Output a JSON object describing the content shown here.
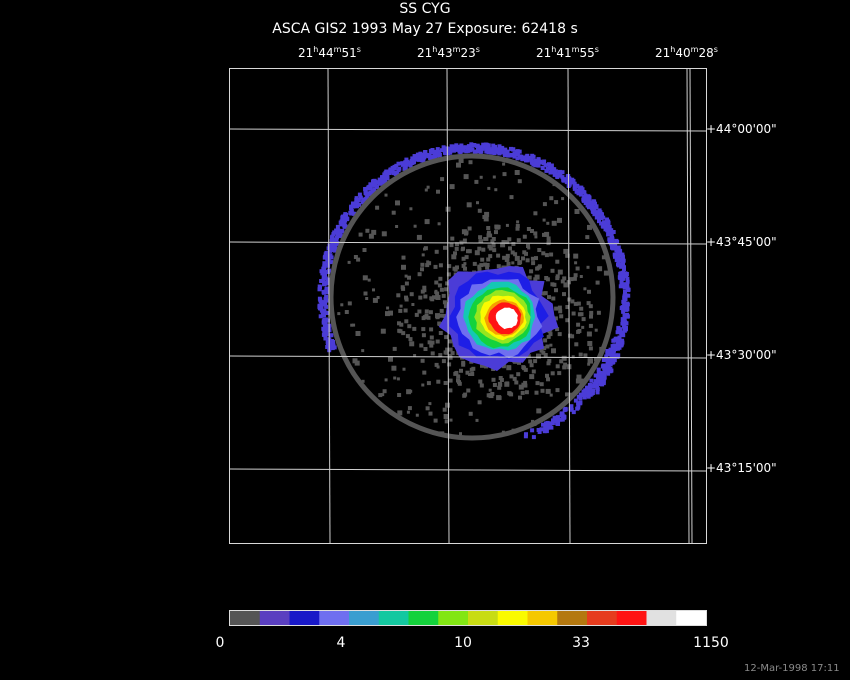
{
  "header": {
    "target": "SS CYG",
    "subtitle": "ASCA GIS2   1993 May 27    Exposure: 62418 s"
  },
  "ra_ticks": [
    {
      "h": "21",
      "m": "44",
      "s": "51"
    },
    {
      "h": "21",
      "m": "43",
      "s": "23"
    },
    {
      "h": "21",
      "m": "41",
      "s": "55"
    },
    {
      "h": "21",
      "m": "40",
      "s": "28"
    }
  ],
  "dec_ticks": [
    "+44°00'00\"",
    "+43°45'00\"",
    "+43°30'00\"",
    "+43°15'00\""
  ],
  "colorbar": {
    "labels": [
      "0",
      "4",
      "10",
      "33",
      "1150"
    ],
    "colors": [
      "#555555",
      "#5a3fc0",
      "#1919c8",
      "#6f6ff0",
      "#3a9ed0",
      "#14c8a0",
      "#14d23c",
      "#82e614",
      "#c8dc14",
      "#fafa00",
      "#f5c800",
      "#b4780f",
      "#e63c1e",
      "#ff1414",
      "#e1e1e1",
      "#ffffff"
    ]
  },
  "image_colors": {
    "ring": "#555555",
    "noise": "#555555",
    "violet": "#4b3cd7",
    "blue": "#1e1ee6",
    "light_blue": "#6f6ff0",
    "cyan": "#14c8b4",
    "green": "#14d23c",
    "yellow_green": "#96e61e",
    "yellow": "#fafa00",
    "orange": "#f5a000",
    "red": "#ff1414",
    "white": "#ffffff",
    "grid": "#d0d0d0"
  },
  "footer": {
    "timestamp": "12-Mar-1998 17:11"
  }
}
